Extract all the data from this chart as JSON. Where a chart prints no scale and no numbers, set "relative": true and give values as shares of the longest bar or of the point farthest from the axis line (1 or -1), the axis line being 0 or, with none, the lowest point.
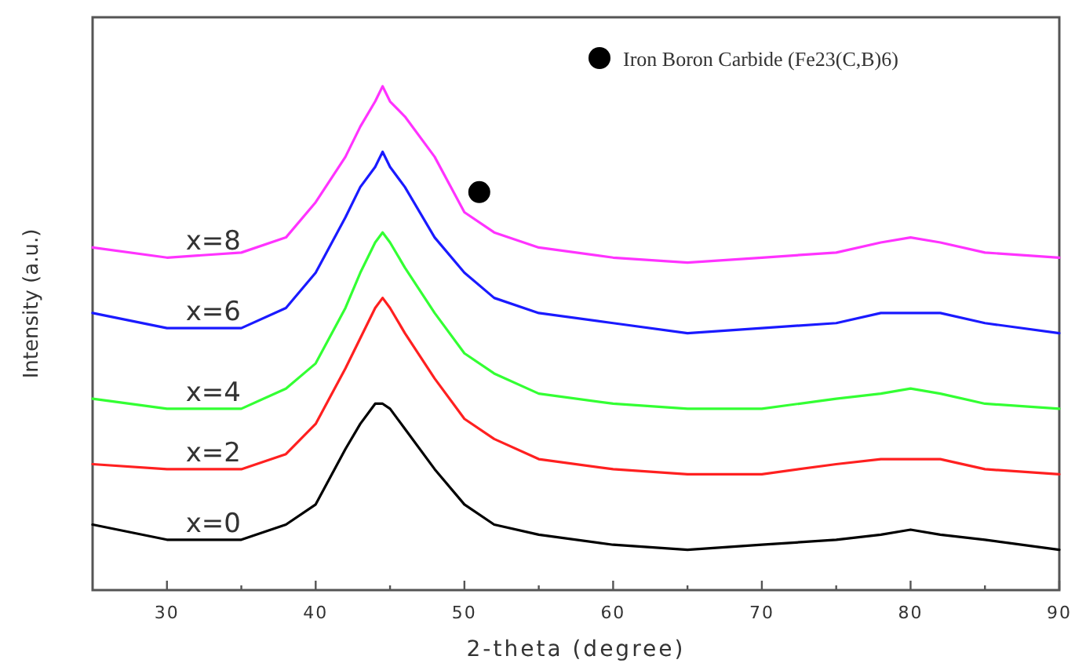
{
  "chart_data": {
    "type": "line",
    "relative": true,
    "xlabel": "2-theta (degree)",
    "ylabel": "Intensity (a.u.)",
    "xlim": [
      25,
      90
    ],
    "xticks": [
      30,
      {
        "value": 35,
        "label": null
      },
      40,
      {
        "value": 45,
        "label": null
      },
      50,
      {
        "value": 55,
        "label": null
      },
      60,
      {
        "value": 65,
        "label": null
      },
      70,
      {
        "value": 75,
        "label": null
      },
      80,
      {
        "value": 85,
        "label": null
      },
      90
    ],
    "x": [
      25,
      30,
      35,
      38,
      40,
      42,
      43,
      44,
      44.5,
      45,
      46,
      48,
      50,
      52,
      55,
      60,
      65,
      70,
      75,
      78,
      80,
      82,
      85,
      90
    ],
    "legend": "top right",
    "marker": "none",
    "line_style": "solid",
    "grid": false,
    "series": [
      {
        "name": "x=8",
        "color": "#ff33ff",
        "values": [
          0.68,
          0.66,
          0.67,
          0.7,
          0.77,
          0.86,
          0.92,
          0.97,
          1,
          0.97,
          0.94,
          0.86,
          0.75,
          0.71,
          0.68,
          0.66,
          0.65,
          0.66,
          0.67,
          0.69,
          0.7,
          0.69,
          0.67,
          0.66
        ]
      },
      {
        "name": "x=6",
        "color": "#1a1aff",
        "values": [
          0.55,
          0.52,
          0.52,
          0.56,
          0.63,
          0.74,
          0.8,
          0.84,
          0.87,
          0.84,
          0.8,
          0.7,
          0.63,
          0.58,
          0.55,
          0.53,
          0.51,
          0.52,
          0.53,
          0.55,
          0.55,
          0.55,
          0.53,
          0.51
        ]
      },
      {
        "name": "x=4",
        "color": "#33ff33",
        "values": [
          0.38,
          0.36,
          0.36,
          0.4,
          0.45,
          0.56,
          0.63,
          0.69,
          0.71,
          0.69,
          0.64,
          0.55,
          0.47,
          0.43,
          0.39,
          0.37,
          0.36,
          0.36,
          0.38,
          0.39,
          0.4,
          0.39,
          0.37,
          0.36
        ]
      },
      {
        "name": "x=2",
        "color": "#ff2020",
        "values": [
          0.25,
          0.24,
          0.24,
          0.27,
          0.33,
          0.44,
          0.5,
          0.56,
          0.58,
          0.56,
          0.51,
          0.42,
          0.34,
          0.3,
          0.26,
          0.24,
          0.23,
          0.23,
          0.25,
          0.26,
          0.26,
          0.26,
          0.24,
          0.23
        ]
      },
      {
        "name": "x=0",
        "color": "#000000",
        "values": [
          0.13,
          0.1,
          0.1,
          0.13,
          0.17,
          0.28,
          0.33,
          0.37,
          0.37,
          0.36,
          0.32,
          0.24,
          0.17,
          0.13,
          0.11,
          0.09,
          0.08,
          0.09,
          0.1,
          0.11,
          0.12,
          0.11,
          0.1,
          0.08
        ]
      },
      {
        "name": "Iron Boron Carbide (Fe23(C,B)6)",
        "type": "scatter",
        "marker": "circle",
        "color": "#000000",
        "x": [
          51
        ],
        "values": [
          0.79
        ]
      }
    ]
  }
}
